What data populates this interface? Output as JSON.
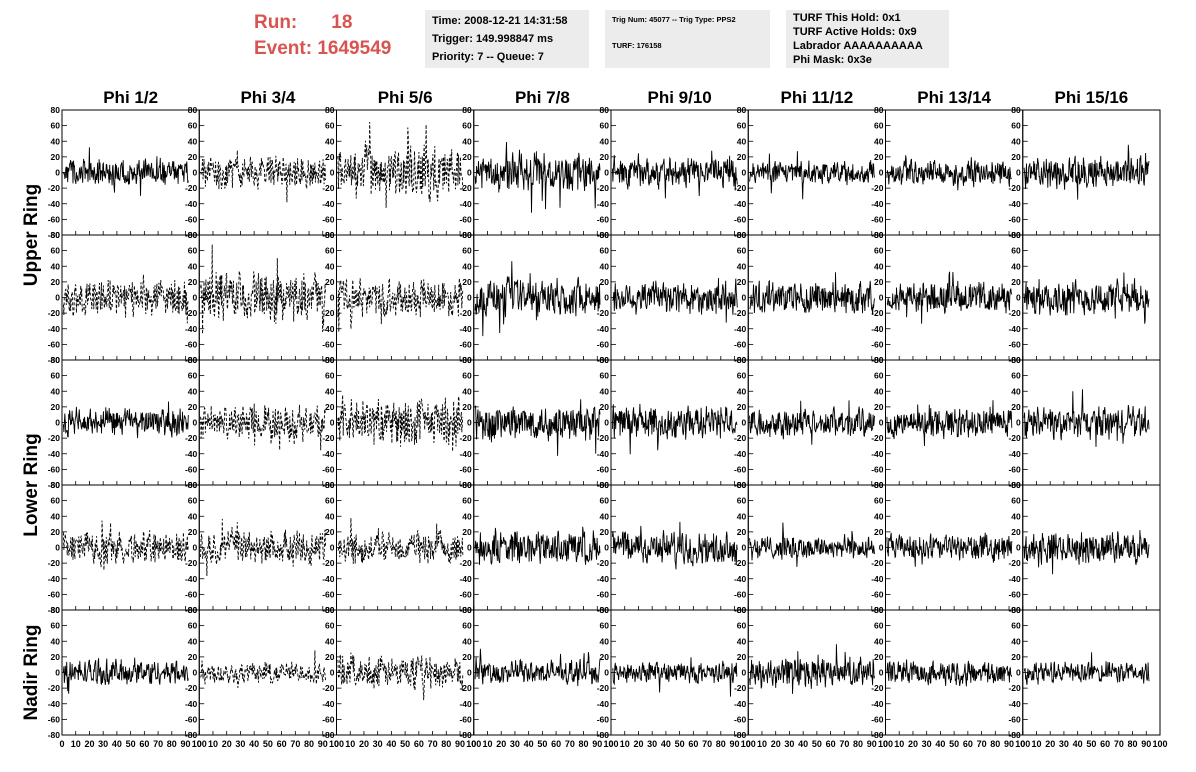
{
  "header": {
    "run_label": "Run:",
    "run_value": "18",
    "event_label": "Event:",
    "event_value": "1649549"
  },
  "info": {
    "time": "Time: 2008-12-21 14:31:58",
    "trigger": "Trigger: 149.998847 ms",
    "priority": "Priority: 7 -- Queue: 7",
    "trig_num": "Trig Num: 45077 -- Trig Type: PPS2",
    "turf": "TURF: 176158",
    "turf_hold": "TURF This Hold: 0x1",
    "turf_active": "TURF Active Holds: 0x9",
    "labrador": "Labrador AAAAAAAAAA",
    "phi_mask": "Phi Mask: 0x3e"
  },
  "chart_data": {
    "type": "line",
    "columns": [
      "Phi 1/2",
      "Phi 3/4",
      "Phi 5/6",
      "Phi 7/8",
      "Phi 9/10",
      "Phi 11/12",
      "Phi 13/14",
      "Phi 15/16"
    ],
    "rows": [
      "Upper Ring",
      "Upper Ring",
      "Lower Ring",
      "Lower Ring",
      "Nadir Ring"
    ],
    "row_labels": [
      {
        "text": "Upper Ring",
        "spans": [
          0,
          1
        ]
      },
      {
        "text": "Lower Ring",
        "spans": [
          2,
          3
        ]
      },
      {
        "text": "Nadir Ring",
        "spans": [
          4,
          4
        ]
      }
    ],
    "xlim": [
      0,
      100
    ],
    "ylim": [
      -80,
      80
    ],
    "x_ticks": [
      0,
      10,
      20,
      30,
      40,
      50,
      60,
      70,
      80,
      90,
      100
    ],
    "y_ticks": [
      -80,
      -60,
      -40,
      -20,
      0,
      20,
      40,
      60,
      80
    ],
    "dashed_panels": [
      [
        0,
        1
      ],
      [
        0,
        2
      ],
      [
        1,
        0
      ],
      [
        1,
        1
      ],
      [
        1,
        2
      ],
      [
        2,
        1
      ],
      [
        2,
        2
      ],
      [
        3,
        0
      ],
      [
        3,
        1
      ],
      [
        3,
        2
      ],
      [
        4,
        1
      ],
      [
        4,
        2
      ]
    ],
    "amplitudes": [
      [
        12,
        14,
        25,
        18,
        14,
        11,
        12,
        15
      ],
      [
        17,
        23,
        17,
        17,
        16,
        15,
        14,
        16
      ],
      [
        13,
        16,
        22,
        17,
        15,
        13,
        14,
        14
      ],
      [
        15,
        16,
        14,
        16,
        15,
        11,
        12,
        14
      ],
      [
        12,
        10,
        15,
        11,
        10,
        14,
        11,
        10
      ]
    ],
    "samples_per_trace": 260,
    "colors": {
      "trace": "#000000",
      "axis": "#000000"
    }
  }
}
